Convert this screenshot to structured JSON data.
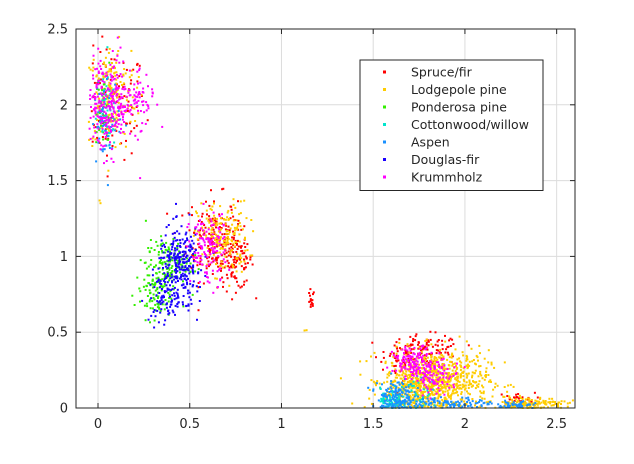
{
  "chart_data": {
    "type": "scatter",
    "title": "",
    "xlabel": "",
    "ylabel": "",
    "xlim": [
      -0.12,
      2.6
    ],
    "ylim": [
      0,
      2.5
    ],
    "xticks": [
      0,
      0.5,
      1,
      1.5,
      2,
      2.5
    ],
    "yticks": [
      0,
      0.5,
      1,
      1.5,
      2,
      2.5
    ],
    "xtick_labels": [
      "0",
      "0.5",
      "1",
      "1.5",
      "2",
      "2.5"
    ],
    "ytick_labels": [
      "0",
      "0.5",
      "1",
      "1.5",
      "2",
      "2.5"
    ],
    "grid": true,
    "legend_position": "top-right",
    "series": [
      {
        "name": "Spruce/fir",
        "color": "#ff0000",
        "clusters": [
          {
            "cx": 0.08,
            "cy": 2.0,
            "sx": 0.09,
            "sy": 0.18,
            "n": 110
          },
          {
            "cx": 0.62,
            "cy": 1.12,
            "sx": 0.07,
            "sy": 0.14,
            "n": 160
          },
          {
            "cx": 0.75,
            "cy": 0.98,
            "sx": 0.05,
            "sy": 0.1,
            "n": 110
          },
          {
            "cx": 1.16,
            "cy": 0.7,
            "sx": 0.01,
            "sy": 0.04,
            "n": 14
          },
          {
            "cx": 1.78,
            "cy": 0.38,
            "sx": 0.1,
            "sy": 0.05,
            "n": 120
          },
          {
            "cx": 1.66,
            "cy": 0.3,
            "sx": 0.05,
            "sy": 0.05,
            "n": 40
          },
          {
            "cx": 2.28,
            "cy": 0.06,
            "sx": 0.05,
            "sy": 0.02,
            "n": 30
          }
        ]
      },
      {
        "name": "Lodgepole pine",
        "color": "#ffcc00",
        "clusters": [
          {
            "cx": 0.07,
            "cy": 2.05,
            "sx": 0.07,
            "sy": 0.17,
            "n": 180
          },
          {
            "cx": 0.68,
            "cy": 1.12,
            "sx": 0.07,
            "sy": 0.12,
            "n": 180
          },
          {
            "cx": 1.13,
            "cy": 0.52,
            "sx": 0.005,
            "sy": 0.01,
            "n": 2
          },
          {
            "cx": 1.85,
            "cy": 0.18,
            "sx": 0.14,
            "sy": 0.1,
            "n": 700
          },
          {
            "cx": 1.7,
            "cy": 0.12,
            "sx": 0.07,
            "sy": 0.09,
            "n": 200
          },
          {
            "cx": 2.35,
            "cy": 0.03,
            "sx": 0.1,
            "sy": 0.02,
            "n": 150
          },
          {
            "cx": 0.01,
            "cy": 1.36,
            "sx": 0.003,
            "sy": 0.01,
            "n": 2
          }
        ]
      },
      {
        "name": "Ponderosa pine",
        "color": "#33ee00",
        "clusters": [
          {
            "cx": 0.03,
            "cy": 1.95,
            "sx": 0.02,
            "sy": 0.12,
            "n": 50
          },
          {
            "cx": 0.38,
            "cy": 0.95,
            "sx": 0.06,
            "sy": 0.08,
            "n": 140
          },
          {
            "cx": 0.3,
            "cy": 0.75,
            "sx": 0.05,
            "sy": 0.08,
            "n": 80
          }
        ]
      },
      {
        "name": "Cottonwood/willow",
        "color": "#00e5cc",
        "clusters": [
          {
            "cx": 0.04,
            "cy": 1.95,
            "sx": 0.03,
            "sy": 0.12,
            "n": 50
          },
          {
            "cx": 1.6,
            "cy": 0.05,
            "sx": 0.03,
            "sy": 0.04,
            "n": 70
          },
          {
            "cx": 1.75,
            "cy": 0.1,
            "sx": 0.05,
            "sy": 0.05,
            "n": 40
          }
        ]
      },
      {
        "name": "Aspen",
        "color": "#1a90ff",
        "clusters": [
          {
            "cx": 0.05,
            "cy": 1.9,
            "sx": 0.04,
            "sy": 0.14,
            "n": 60
          },
          {
            "cx": 1.62,
            "cy": 0.08,
            "sx": 0.05,
            "sy": 0.06,
            "n": 140
          },
          {
            "cx": 1.9,
            "cy": 0.03,
            "sx": 0.14,
            "sy": 0.02,
            "n": 120
          },
          {
            "cx": 2.28,
            "cy": 0.02,
            "sx": 0.06,
            "sy": 0.015,
            "n": 40
          }
        ]
      },
      {
        "name": "Douglas-fir",
        "color": "#1a00ff",
        "clusters": [
          {
            "cx": 0.45,
            "cy": 0.95,
            "sx": 0.06,
            "sy": 0.12,
            "n": 240
          },
          {
            "cx": 0.38,
            "cy": 0.72,
            "sx": 0.05,
            "sy": 0.08,
            "n": 90
          }
        ]
      },
      {
        "name": "Krummholz",
        "color": "#ff00ff",
        "clusters": [
          {
            "cx": 0.05,
            "cy": 2.0,
            "sx": 0.07,
            "sy": 0.16,
            "n": 260
          },
          {
            "cx": 0.22,
            "cy": 2.02,
            "sx": 0.04,
            "sy": 0.08,
            "n": 60
          },
          {
            "cx": 0.6,
            "cy": 1.05,
            "sx": 0.05,
            "sy": 0.12,
            "n": 120
          },
          {
            "cx": 1.73,
            "cy": 0.3,
            "sx": 0.06,
            "sy": 0.05,
            "n": 140
          },
          {
            "cx": 1.85,
            "cy": 0.2,
            "sx": 0.06,
            "sy": 0.05,
            "n": 80
          }
        ]
      }
    ]
  }
}
